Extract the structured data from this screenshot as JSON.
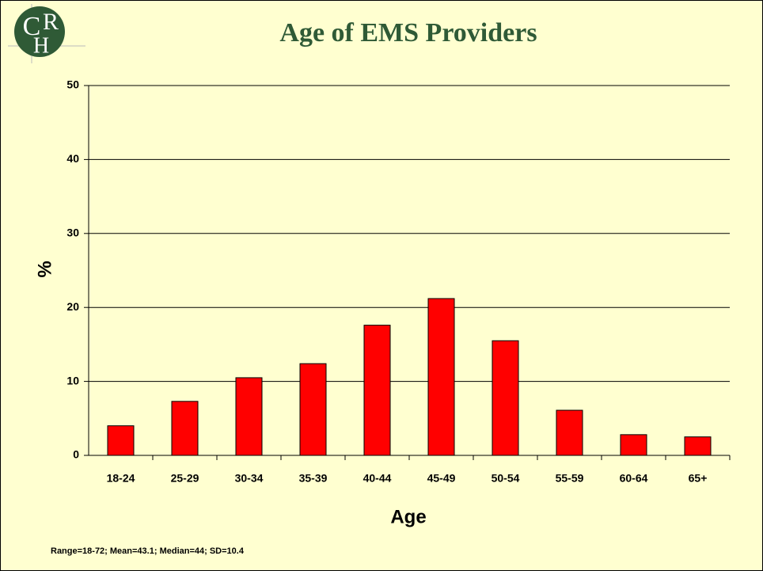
{
  "logo_letters": [
    "C",
    "R",
    "H"
  ],
  "chart_data": {
    "type": "bar",
    "title": "Age of EMS Providers",
    "categories": [
      "18-24",
      "25-29",
      "30-34",
      "35-39",
      "40-44",
      "45-49",
      "50-54",
      "55-59",
      "60-64",
      "65+"
    ],
    "values": [
      4.0,
      7.3,
      10.5,
      12.4,
      17.6,
      21.2,
      15.5,
      6.1,
      2.8,
      2.5
    ],
    "color": "#ff0000",
    "ylim": [
      0,
      50
    ],
    "yticks": [
      0,
      10,
      20,
      30,
      40,
      50
    ],
    "grid": true,
    "y_label": "%",
    "x_label": "Age",
    "note": "Range=18-72; Mean=43.1; Median=44; SD=10.4"
  }
}
